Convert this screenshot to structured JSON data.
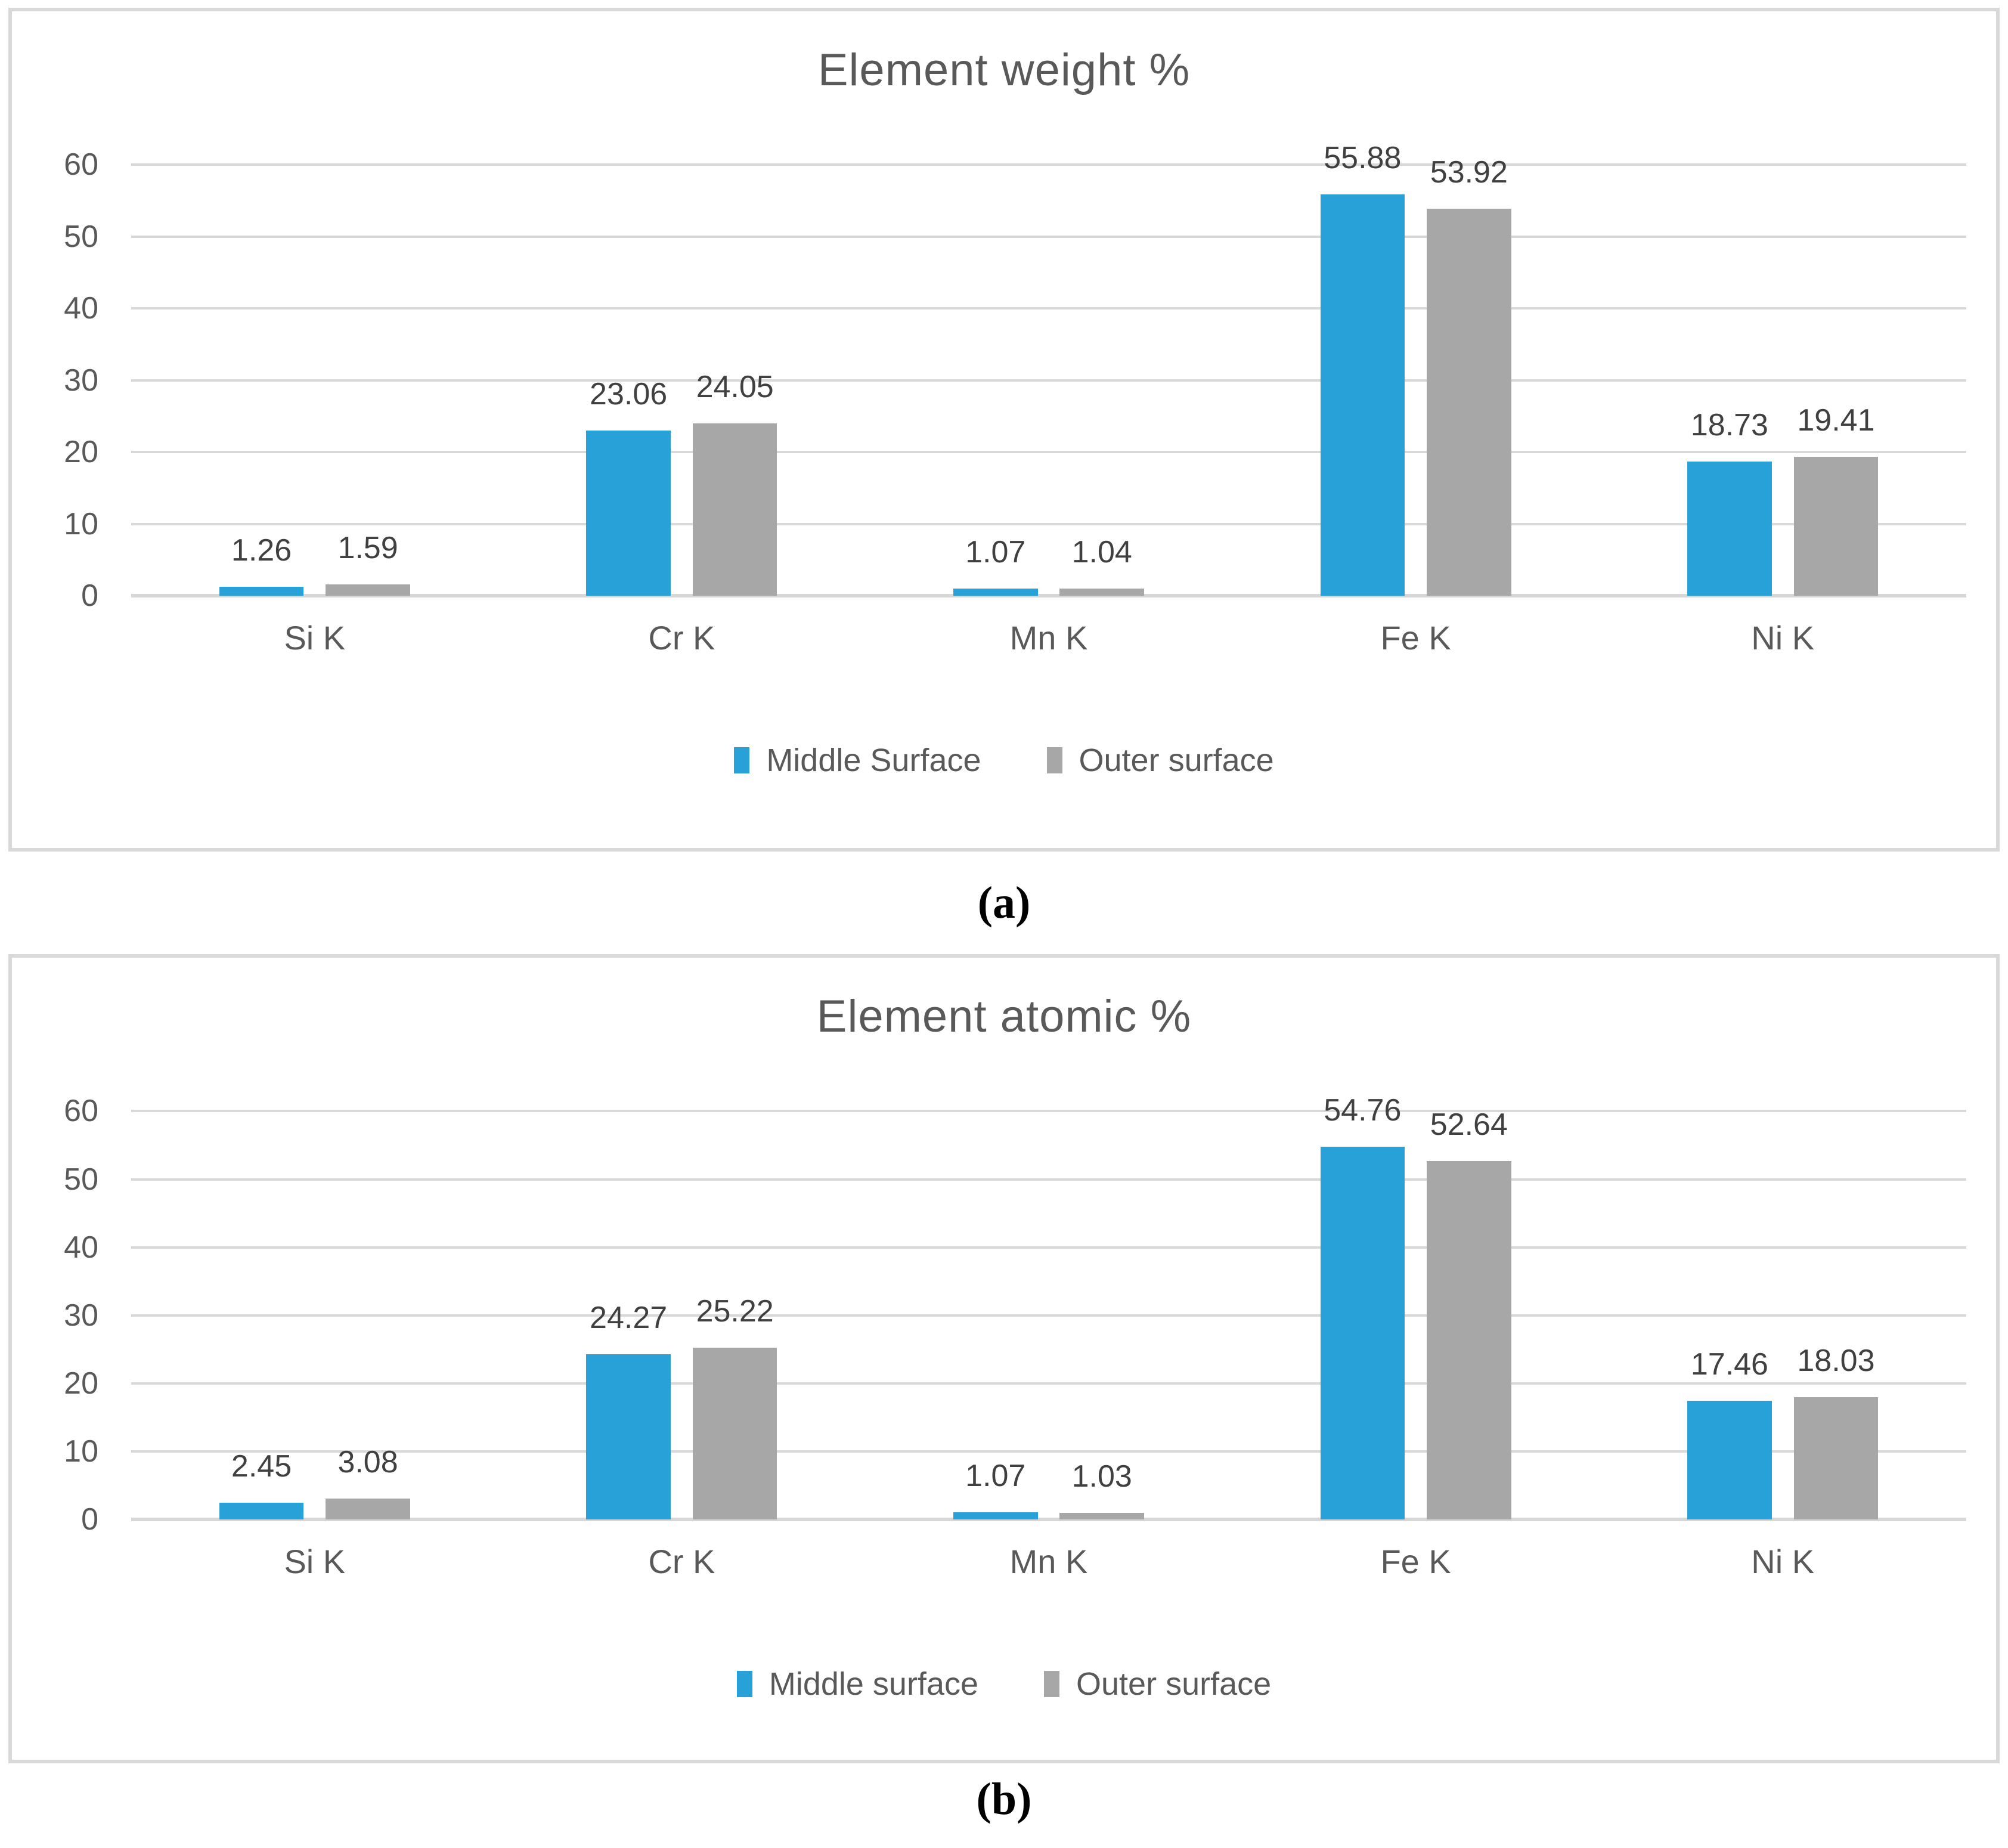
{
  "figure": {
    "captions": {
      "a": "(a)",
      "b": "(b)"
    }
  },
  "colors": {
    "series_blue": "#28A0D8",
    "series_gray": "#A7A7A7",
    "gridline": "#D9D9D9",
    "panel_border": "#D9D9D9",
    "title_text": "#595959",
    "label_text": "#404040"
  },
  "chart_data": [
    {
      "type": "bar",
      "title": "Element weight %",
      "categories": [
        "Si K",
        "Cr K",
        "Mn K",
        "Fe K",
        "Ni K"
      ],
      "series": [
        {
          "name": "Middle Surface",
          "color": "#28A0D8",
          "values": [
            1.26,
            23.06,
            1.07,
            55.88,
            18.73
          ]
        },
        {
          "name": "Outer surface",
          "color": "#A7A7A7",
          "values": [
            1.59,
            24.05,
            1.04,
            53.92,
            19.41
          ]
        }
      ],
      "ylim": [
        0,
        60
      ],
      "ytick_step": 10,
      "yticks": [
        0,
        10,
        20,
        30,
        40,
        50,
        60
      ],
      "grid": true,
      "legend_position": "bottom",
      "value_label_decimals": 2
    },
    {
      "type": "bar",
      "title": "Element atomic %",
      "categories": [
        "Si K",
        "Cr K",
        "Mn K",
        "Fe K",
        "Ni K"
      ],
      "series": [
        {
          "name": "Middle surface",
          "color": "#28A0D8",
          "values": [
            2.45,
            24.27,
            1.07,
            54.76,
            17.46
          ]
        },
        {
          "name": "Outer surface",
          "color": "#A7A7A7",
          "values": [
            3.08,
            25.22,
            1.03,
            52.64,
            18.03
          ]
        }
      ],
      "ylim": [
        0,
        60
      ],
      "ytick_step": 10,
      "yticks": [
        0,
        10,
        20,
        30,
        40,
        50,
        60
      ],
      "grid": true,
      "legend_position": "bottom",
      "value_label_decimals": 2
    }
  ]
}
